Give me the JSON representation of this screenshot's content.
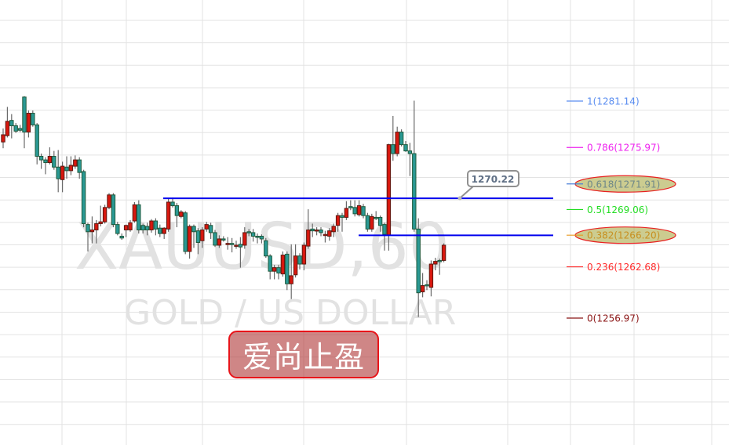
{
  "chart_data": {
    "type": "candlestick",
    "symbol_watermark": "XAUUSD,60",
    "description_watermark": "GOLD / US DOLLAR",
    "up_color": "#d8180f",
    "down_color": "#2a9994",
    "grid": true,
    "ohlc": [
      [
        1276.5,
        1278.0,
        1275.8,
        1277.3
      ],
      [
        1277.2,
        1280.4,
        1277.0,
        1278.8
      ],
      [
        1278.9,
        1279.6,
        1276.9,
        1278.3
      ],
      [
        1278.3,
        1278.6,
        1277.5,
        1277.7
      ],
      [
        1278.0,
        1278.4,
        1277.6,
        1277.8
      ],
      [
        1281.5,
        1281.6,
        1275.8,
        1277.6
      ],
      [
        1277.6,
        1280.0,
        1277.0,
        1279.7
      ],
      [
        1279.7,
        1280.0,
        1278.2,
        1278.4
      ],
      [
        1278.4,
        1278.6,
        1274.0,
        1274.9
      ],
      [
        1274.9,
        1275.2,
        1273.5,
        1274.5
      ],
      [
        1274.5,
        1274.8,
        1272.9,
        1274.2
      ],
      [
        1274.2,
        1275.9,
        1274.0,
        1274.9
      ],
      [
        1274.9,
        1275.5,
        1273.4,
        1273.7
      ],
      [
        1273.7,
        1275.6,
        1270.9,
        1272.4
      ],
      [
        1272.3,
        1274.3,
        1270.9,
        1273.8
      ],
      [
        1273.7,
        1274.9,
        1272.4,
        1273.3
      ],
      [
        1273.3,
        1274.9,
        1272.8,
        1273.9
      ],
      [
        1273.8,
        1275.0,
        1273.5,
        1274.5
      ],
      [
        1274.5,
        1274.8,
        1272.4,
        1273.1
      ],
      [
        1273.2,
        1273.4,
        1267.0,
        1267.4
      ],
      [
        1267.3,
        1267.5,
        1264.3,
        1266.5
      ],
      [
        1266.5,
        1268.2,
        1265.2,
        1266.7
      ],
      [
        1266.7,
        1267.8,
        1265.2,
        1267.4
      ],
      [
        1267.4,
        1269.4,
        1267.1,
        1267.6
      ],
      [
        1267.6,
        1269.5,
        1267.4,
        1269.2
      ],
      [
        1269.2,
        1270.8,
        1269.0,
        1270.6
      ],
      [
        1270.6,
        1270.8,
        1267.0,
        1267.3
      ],
      [
        1267.3,
        1267.6,
        1266.1,
        1266.3
      ],
      [
        1266.0,
        1266.3,
        1265.6,
        1265.8
      ],
      [
        1266.7,
        1267.3,
        1265.9,
        1267.2
      ],
      [
        1266.7,
        1267.8,
        1266.5,
        1267.5
      ],
      [
        1267.7,
        1269.8,
        1267.5,
        1269.5
      ],
      [
        1269.5,
        1270.0,
        1266.3,
        1266.7
      ],
      [
        1267.2,
        1267.4,
        1266.3,
        1266.7
      ],
      [
        1267.1,
        1267.5,
        1266.1,
        1266.7
      ],
      [
        1266.7,
        1267.9,
        1266.4,
        1267.7
      ],
      [
        1267.7,
        1268.0,
        1266.1,
        1266.8
      ],
      [
        1266.9,
        1267.3,
        1265.9,
        1266.3
      ],
      [
        1266.3,
        1267.0,
        1265.7,
        1266.9
      ],
      [
        1266.8,
        1270.2,
        1266.5,
        1269.8
      ],
      [
        1269.8,
        1270.3,
        1269.2,
        1269.4
      ],
      [
        1269.4,
        1269.7,
        1267.0,
        1268.3
      ],
      [
        1268.2,
        1268.9,
        1268.0,
        1268.7
      ],
      [
        1268.6,
        1268.8,
        1264.0,
        1264.3
      ],
      [
        1264.3,
        1267.3,
        1263.5,
        1267.1
      ],
      [
        1267.1,
        1267.3,
        1264.7,
        1266.5
      ],
      [
        1266.6,
        1266.9,
        1264.0,
        1265.3
      ],
      [
        1265.5,
        1267.0,
        1264.7,
        1266.7
      ],
      [
        1266.8,
        1267.6,
        1266.5,
        1267.3
      ],
      [
        1267.2,
        1267.5,
        1265.7,
        1266.4
      ],
      [
        1266.4,
        1266.7,
        1264.8,
        1265.0
      ],
      [
        1265.0,
        1266.1,
        1264.7,
        1265.7
      ],
      [
        1265.7,
        1266.0,
        1265.4,
        1265.6
      ],
      [
        1265.1,
        1265.9,
        1264.5,
        1265.2
      ],
      [
        1265.2,
        1265.8,
        1264.2,
        1265.1
      ],
      [
        1264.9,
        1265.5,
        1264.6,
        1265.0
      ],
      [
        1265.1,
        1265.9,
        1262.5,
        1264.8
      ],
      [
        1265.0,
        1267.0,
        1264.6,
        1266.4
      ],
      [
        1266.5,
        1266.8,
        1266.0,
        1266.4
      ],
      [
        1266.4,
        1266.8,
        1265.4,
        1266.0
      ],
      [
        1266.0,
        1266.3,
        1265.2,
        1265.9
      ],
      [
        1266.0,
        1266.2,
        1265.2,
        1265.7
      ],
      [
        1265.5,
        1265.8,
        1263.6,
        1263.8
      ],
      [
        1263.8,
        1264.0,
        1261.2,
        1262.1
      ],
      [
        1262.1,
        1262.8,
        1261.2,
        1262.5
      ],
      [
        1262.5,
        1262.8,
        1261.2,
        1261.9
      ],
      [
        1261.8,
        1264.3,
        1261.5,
        1263.9
      ],
      [
        1264.0,
        1264.3,
        1260.0,
        1260.7
      ],
      [
        1260.7,
        1265.1,
        1259.0,
        1261.6
      ],
      [
        1261.7,
        1265.1,
        1261.4,
        1263.8
      ],
      [
        1263.8,
        1264.1,
        1262.3,
        1262.9
      ],
      [
        1262.9,
        1265.3,
        1262.2,
        1265.0
      ],
      [
        1264.9,
        1269.0,
        1264.6,
        1266.7
      ],
      [
        1266.8,
        1267.4,
        1265.9,
        1266.6
      ],
      [
        1266.6,
        1267.0,
        1266.1,
        1266.7
      ],
      [
        1266.7,
        1267.0,
        1266.0,
        1266.4
      ],
      [
        1266.1,
        1266.6,
        1265.3,
        1266.2
      ],
      [
        1266.0,
        1266.9,
        1265.5,
        1266.6
      ],
      [
        1266.5,
        1267.4,
        1265.9,
        1267.1
      ],
      [
        1267.2,
        1268.6,
        1266.5,
        1268.3
      ],
      [
        1268.3,
        1268.6,
        1266.5,
        1268.1
      ],
      [
        1268.1,
        1269.9,
        1267.8,
        1269.1
      ],
      [
        1269.3,
        1270.0,
        1268.9,
        1269.2
      ],
      [
        1269.2,
        1270.0,
        1268.2,
        1268.5
      ],
      [
        1268.4,
        1270.0,
        1268.2,
        1269.4
      ],
      [
        1269.3,
        1269.6,
        1268.0,
        1268.3
      ],
      [
        1268.3,
        1268.6,
        1266.5,
        1266.8
      ],
      [
        1266.8,
        1268.5,
        1266.5,
        1268.2
      ],
      [
        1268.1,
        1268.8,
        1267.8,
        1268.0
      ],
      [
        1268.1,
        1268.3,
        1266.5,
        1267.2
      ],
      [
        1267.3,
        1267.5,
        1264.4,
        1266.2
      ],
      [
        1266.1,
        1276.3,
        1264.4,
        1276.2
      ],
      [
        1276.2,
        1279.4,
        1274.4,
        1275.2
      ],
      [
        1275.2,
        1278.2,
        1274.9,
        1277.6
      ],
      [
        1277.6,
        1277.9,
        1276.0,
        1276.2
      ],
      [
        1276.2,
        1276.6,
        1275.4,
        1275.5
      ],
      [
        1275.5,
        1276.4,
        1272.7,
        1275.2
      ],
      [
        1275.2,
        1281.1,
        1266.5,
        1266.8
      ],
      [
        1266.8,
        1268.0,
        1257.0,
        1259.7
      ],
      [
        1259.8,
        1261.9,
        1259.2,
        1260.5
      ],
      [
        1260.6,
        1261.1,
        1260.0,
        1260.5
      ],
      [
        1260.3,
        1263.3,
        1259.3,
        1262.9
      ],
      [
        1262.9,
        1263.6,
        1262.2,
        1263.2
      ],
      [
        1263.3,
        1263.5,
        1261.7,
        1263.2
      ],
      [
        1263.3,
        1265.2,
        1263.1,
        1265.0
      ]
    ],
    "fibonacci": [
      {
        "label": "1(1281.14)",
        "ratio": 1,
        "price": 1281.14,
        "color": "#5b8ef0",
        "highlighted": false
      },
      {
        "label": "0.786(1275.97)",
        "ratio": 0.786,
        "price": 1275.97,
        "color": "#ee22ee",
        "highlighted": false
      },
      {
        "label": "0.618(1271.91)",
        "ratio": 0.618,
        "price": 1271.91,
        "color": "#4a7fd8",
        "highlighted": true
      },
      {
        "label": "0.5(1269.06)",
        "ratio": 0.5,
        "price": 1269.06,
        "color": "#22dd22",
        "highlighted": false
      },
      {
        "label": "0.382(1266.20)",
        "ratio": 0.382,
        "price": 1266.2,
        "color": "#e89a20",
        "highlighted": true
      },
      {
        "label": "0.236(1262.68)",
        "ratio": 0.236,
        "price": 1262.68,
        "color": "#ff2a2a",
        "highlighted": false
      },
      {
        "label": "0(1256.97)",
        "ratio": 0,
        "price": 1256.97,
        "color": "#8b1515",
        "highlighted": false
      }
    ],
    "horizontal_lines": [
      {
        "price": 1270.22,
        "label": "1270.22",
        "color": "#0000ee"
      },
      {
        "price": 1266.1,
        "color": "#0000ee"
      }
    ]
  },
  "stamp": {
    "text": "爱尚止盈",
    "color": "#e8141a"
  }
}
